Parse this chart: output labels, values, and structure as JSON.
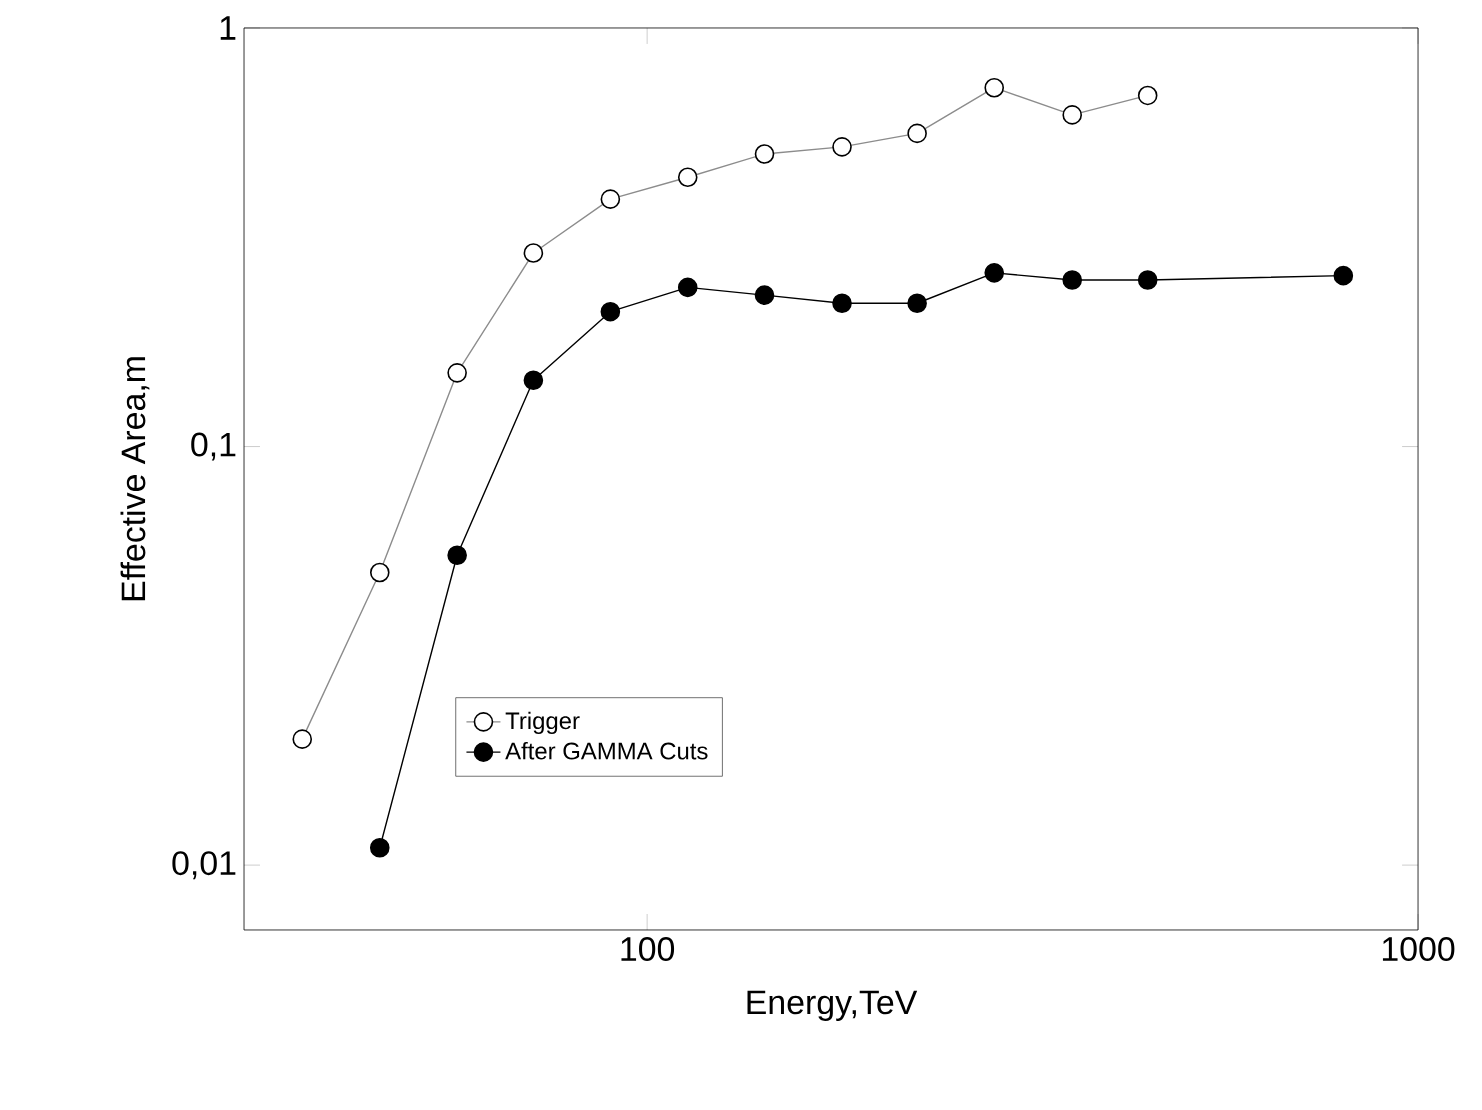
{
  "chart_data": {
    "type": "line",
    "xlabel": "Energy,TeV",
    "ylabel": "Effective Area,m",
    "log": "xy",
    "xlim": [
      30,
      1000
    ],
    "ylim": [
      0.007,
      1
    ],
    "xticks": [
      100,
      1000
    ],
    "yticks": [
      {
        "value": 0.01,
        "label": "0,01"
      },
      {
        "value": 0.1,
        "label": "0,1"
      },
      1
    ],
    "marker": "circle",
    "legend": "bottom left",
    "grid": false,
    "series": [
      {
        "name": "Trigger",
        "color": "#000000",
        "x": [
          35.7,
          45,
          56.7,
          71.2,
          89.6,
          112.9,
          142,
          179,
          224,
          282,
          356,
          446
        ],
        "values": [
          0.02,
          0.05,
          0.15,
          0.29,
          0.39,
          0.44,
          0.5,
          0.52,
          0.56,
          0.72,
          0.62,
          0.69
        ]
      },
      {
        "name": "After GAMMA Cuts",
        "color": "#000000",
        "x": [
          45,
          56.7,
          71.2,
          89.6,
          112.9,
          142,
          179,
          224,
          282,
          356,
          446,
          800
        ],
        "values": [
          0.011,
          0.055,
          0.144,
          0.21,
          0.24,
          0.23,
          0.22,
          0.22,
          0.26,
          0.25,
          0.25,
          0.256
        ]
      }
    ]
  }
}
